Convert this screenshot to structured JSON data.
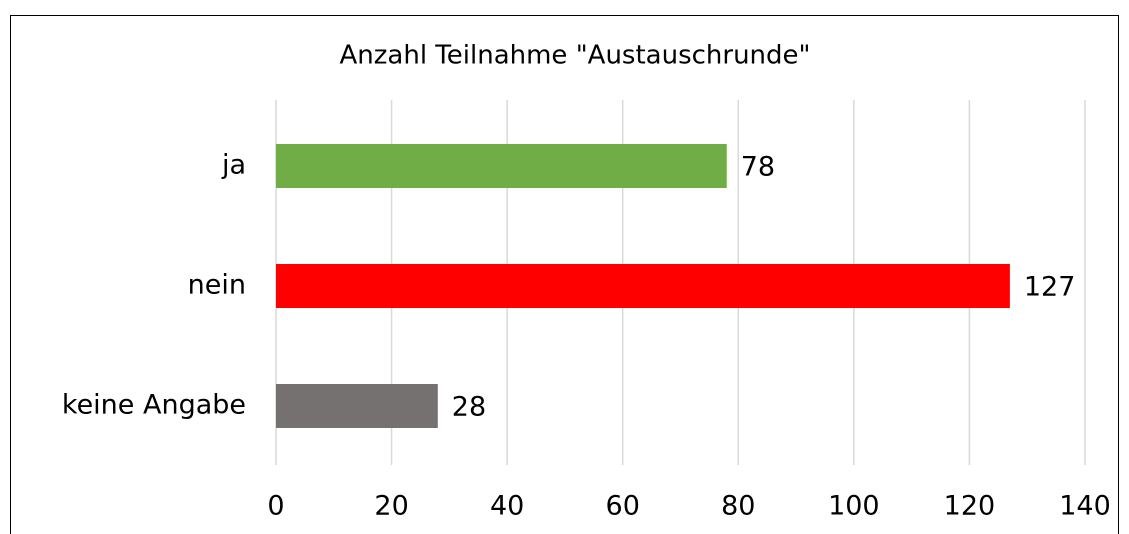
{
  "chart_data": {
    "type": "bar",
    "orientation": "horizontal",
    "title": "Anzahl Teilnahme \"Austauschrunde\"",
    "categories": [
      "ja",
      "nein",
      "keine Angabe"
    ],
    "values": [
      78,
      127,
      28
    ],
    "colors": [
      "#70ad47",
      "#ff0000",
      "#767171"
    ],
    "xlim": [
      0,
      140
    ],
    "xticks": [
      0,
      20,
      40,
      60,
      80,
      100,
      120,
      140
    ],
    "grid": true
  }
}
